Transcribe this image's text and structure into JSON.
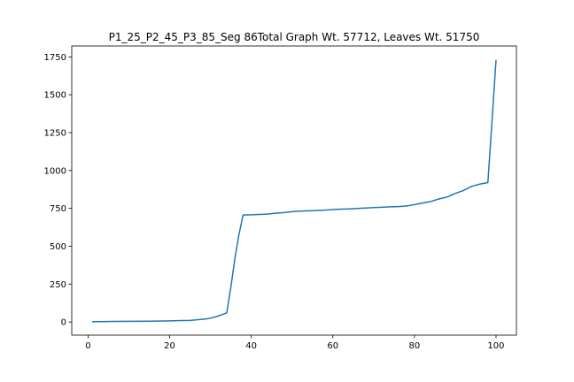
{
  "chart_data": {
    "type": "line",
    "title": "P1_25_P2_45_P3_85_Seg 86Total Graph Wt. 57712, Leaves Wt. 51750",
    "xlabel": "",
    "ylabel": "",
    "xlim": [
      -4,
      105
    ],
    "ylim": [
      -87,
      1822
    ],
    "xticks": [
      0,
      20,
      40,
      60,
      80,
      100
    ],
    "yticks": [
      0,
      250,
      500,
      750,
      1000,
      1250,
      1500,
      1750
    ],
    "grid": false,
    "legend": "none",
    "colors": {
      "series": "#1f77b4"
    },
    "series": [
      {
        "x": [
          1,
          5,
          10,
          15,
          20,
          23,
          25,
          27,
          29,
          30,
          31,
          32,
          33,
          34,
          35,
          36,
          37,
          38,
          40,
          42,
          44,
          46,
          48,
          50,
          52,
          55,
          58,
          60,
          62,
          64,
          66,
          68,
          70,
          72,
          74,
          76,
          78,
          80,
          82,
          84,
          86,
          88,
          90,
          92,
          94,
          96,
          98,
          99,
          100
        ],
        "y": [
          2,
          3,
          4,
          5,
          7,
          9,
          10,
          15,
          20,
          25,
          32,
          40,
          50,
          60,
          230,
          420,
          580,
          706,
          708,
          710,
          712,
          718,
          722,
          728,
          732,
          735,
          738,
          742,
          745,
          746,
          749,
          752,
          755,
          757,
          760,
          762,
          765,
          775,
          785,
          795,
          812,
          825,
          848,
          868,
          895,
          910,
          920,
          1320,
          1730
        ]
      }
    ]
  }
}
